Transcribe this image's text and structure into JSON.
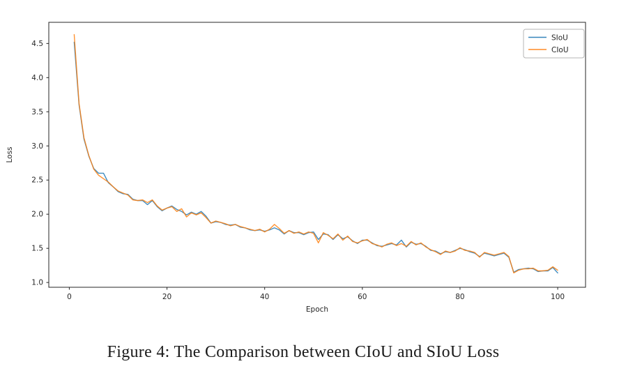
{
  "figure": {
    "caption": "Figure 4: The Comparison between CIoU and SIoU Loss"
  },
  "chart_data": {
    "type": "line",
    "title": "",
    "xlabel": "Epoch",
    "ylabel": "Loss",
    "xlim": [
      -4.2,
      105.7
    ],
    "ylim": [
      0.93,
      4.81
    ],
    "grid": false,
    "legend_position": "upper right",
    "x_ticks": [
      {
        "value": 0,
        "label": "0"
      },
      {
        "value": 20,
        "label": "20"
      },
      {
        "value": 40,
        "label": "40"
      },
      {
        "value": 60,
        "label": "60"
      },
      {
        "value": 80,
        "label": "80"
      },
      {
        "value": 100,
        "label": "100"
      }
    ],
    "y_ticks": [
      {
        "value": 1.0,
        "label": "1.0"
      },
      {
        "value": 1.5,
        "label": "1.5"
      },
      {
        "value": 2.0,
        "label": "2.0"
      },
      {
        "value": 2.5,
        "label": "2.5"
      },
      {
        "value": 3.0,
        "label": "3.0"
      },
      {
        "value": 3.5,
        "label": "3.5"
      },
      {
        "value": 4.0,
        "label": "4.0"
      },
      {
        "value": 4.5,
        "label": "4.5"
      }
    ],
    "x": [
      1,
      2,
      3,
      4,
      5,
      6,
      7,
      8,
      9,
      10,
      11,
      12,
      13,
      14,
      15,
      16,
      17,
      18,
      19,
      20,
      21,
      22,
      23,
      24,
      25,
      26,
      27,
      28,
      29,
      30,
      31,
      32,
      33,
      34,
      35,
      36,
      37,
      38,
      39,
      40,
      41,
      42,
      43,
      44,
      45,
      46,
      47,
      48,
      49,
      50,
      51,
      52,
      53,
      54,
      55,
      56,
      57,
      58,
      59,
      60,
      61,
      62,
      63,
      64,
      65,
      66,
      67,
      68,
      69,
      70,
      71,
      72,
      73,
      74,
      75,
      76,
      77,
      78,
      79,
      80,
      81,
      82,
      83,
      84,
      85,
      86,
      87,
      88,
      89,
      90,
      91,
      92,
      93,
      94,
      95,
      96,
      97,
      98,
      99,
      100
    ],
    "series": [
      {
        "name": "SIoU",
        "color": "#1f77b4",
        "values": [
          4.52,
          3.6,
          3.1,
          2.85,
          2.67,
          2.6,
          2.6,
          2.46,
          2.4,
          2.33,
          2.3,
          2.29,
          2.22,
          2.2,
          2.2,
          2.14,
          2.2,
          2.11,
          2.05,
          2.09,
          2.12,
          2.07,
          2.04,
          1.99,
          2.03,
          2.0,
          2.04,
          1.97,
          1.87,
          1.89,
          1.88,
          1.85,
          1.84,
          1.85,
          1.81,
          1.8,
          1.77,
          1.76,
          1.77,
          1.75,
          1.77,
          1.8,
          1.77,
          1.71,
          1.76,
          1.73,
          1.73,
          1.7,
          1.73,
          1.74,
          1.63,
          1.71,
          1.7,
          1.63,
          1.7,
          1.64,
          1.67,
          1.61,
          1.57,
          1.62,
          1.62,
          1.58,
          1.54,
          1.53,
          1.55,
          1.57,
          1.55,
          1.62,
          1.52,
          1.59,
          1.56,
          1.57,
          1.53,
          1.47,
          1.46,
          1.42,
          1.45,
          1.44,
          1.47,
          1.5,
          1.48,
          1.45,
          1.43,
          1.38,
          1.43,
          1.41,
          1.39,
          1.41,
          1.43,
          1.37,
          1.15,
          1.19,
          1.2,
          1.21,
          1.2,
          1.16,
          1.17,
          1.17,
          1.22,
          1.14
        ]
      },
      {
        "name": "CIoU",
        "color": "#ff7f0e",
        "values": [
          4.63,
          3.62,
          3.12,
          2.86,
          2.66,
          2.57,
          2.52,
          2.47,
          2.4,
          2.34,
          2.31,
          2.28,
          2.21,
          2.2,
          2.21,
          2.17,
          2.21,
          2.12,
          2.06,
          2.09,
          2.11,
          2.04,
          2.08,
          1.96,
          2.02,
          1.99,
          2.02,
          1.95,
          1.87,
          1.9,
          1.88,
          1.86,
          1.83,
          1.85,
          1.82,
          1.8,
          1.78,
          1.76,
          1.78,
          1.74,
          1.78,
          1.85,
          1.79,
          1.72,
          1.76,
          1.72,
          1.74,
          1.71,
          1.74,
          1.72,
          1.58,
          1.73,
          1.69,
          1.64,
          1.71,
          1.62,
          1.68,
          1.6,
          1.58,
          1.61,
          1.63,
          1.57,
          1.55,
          1.52,
          1.56,
          1.58,
          1.54,
          1.57,
          1.53,
          1.6,
          1.55,
          1.58,
          1.52,
          1.48,
          1.45,
          1.41,
          1.46,
          1.44,
          1.46,
          1.51,
          1.47,
          1.46,
          1.44,
          1.37,
          1.44,
          1.42,
          1.4,
          1.42,
          1.44,
          1.38,
          1.14,
          1.18,
          1.2,
          1.2,
          1.21,
          1.17,
          1.17,
          1.18,
          1.23,
          1.18
        ]
      }
    ],
    "spine_color": "#262626",
    "legend_border_color": "#b5b5b5"
  }
}
